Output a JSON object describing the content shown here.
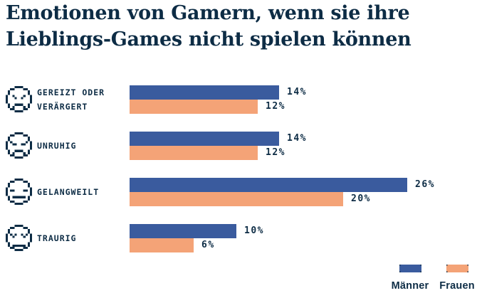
{
  "title": {
    "line1": "Emotionen von Gamern, wenn sie ihre",
    "line2": "Lieblings-Games nicht spielen können"
  },
  "colors": {
    "maenner": "#3a5b9e",
    "frauen": "#f4a377",
    "ink": "#0d2c45",
    "background": "#ffffff"
  },
  "chart_data": {
    "type": "bar",
    "orientation": "horizontal",
    "title": "Emotionen von Gamern, wenn sie ihre Lieblings-Games nicht spielen können",
    "categories": [
      "Gereizt oder verärgert",
      "Unruhig",
      "Gelangweilt",
      "Traurig"
    ],
    "series": [
      {
        "name": "Männer",
        "color": "#3a5b9e",
        "values": [
          14,
          14,
          26,
          10
        ]
      },
      {
        "name": "Frauen",
        "color": "#f4a377",
        "values": [
          12,
          12,
          20,
          6
        ]
      }
    ],
    "value_suffix": "%",
    "xlim": [
      0,
      30
    ],
    "grid": false,
    "legend_position": "bottom-right",
    "data_labels": true
  },
  "rows": [
    {
      "icon": "angry-face-icon",
      "label_lines": [
        "GEREIZT ODER",
        "VERÄRGERT"
      ],
      "maenner_label": "14%",
      "frauen_label": "12%"
    },
    {
      "icon": "anxious-face-icon",
      "label_lines": [
        "UNRUHIG"
      ],
      "maenner_label": "14%",
      "frauen_label": "12%"
    },
    {
      "icon": "bored-face-icon",
      "label_lines": [
        "GELANGWEILT"
      ],
      "maenner_label": "26%",
      "frauen_label": "20%"
    },
    {
      "icon": "sad-face-icon",
      "label_lines": [
        "TRAURIG"
      ],
      "maenner_label": "10%",
      "frauen_label": "6%"
    }
  ],
  "legend": {
    "items": [
      {
        "label": "Männer",
        "color": "#3a5b9e"
      },
      {
        "label": "Frauen",
        "color": "#f4a377"
      }
    ]
  }
}
